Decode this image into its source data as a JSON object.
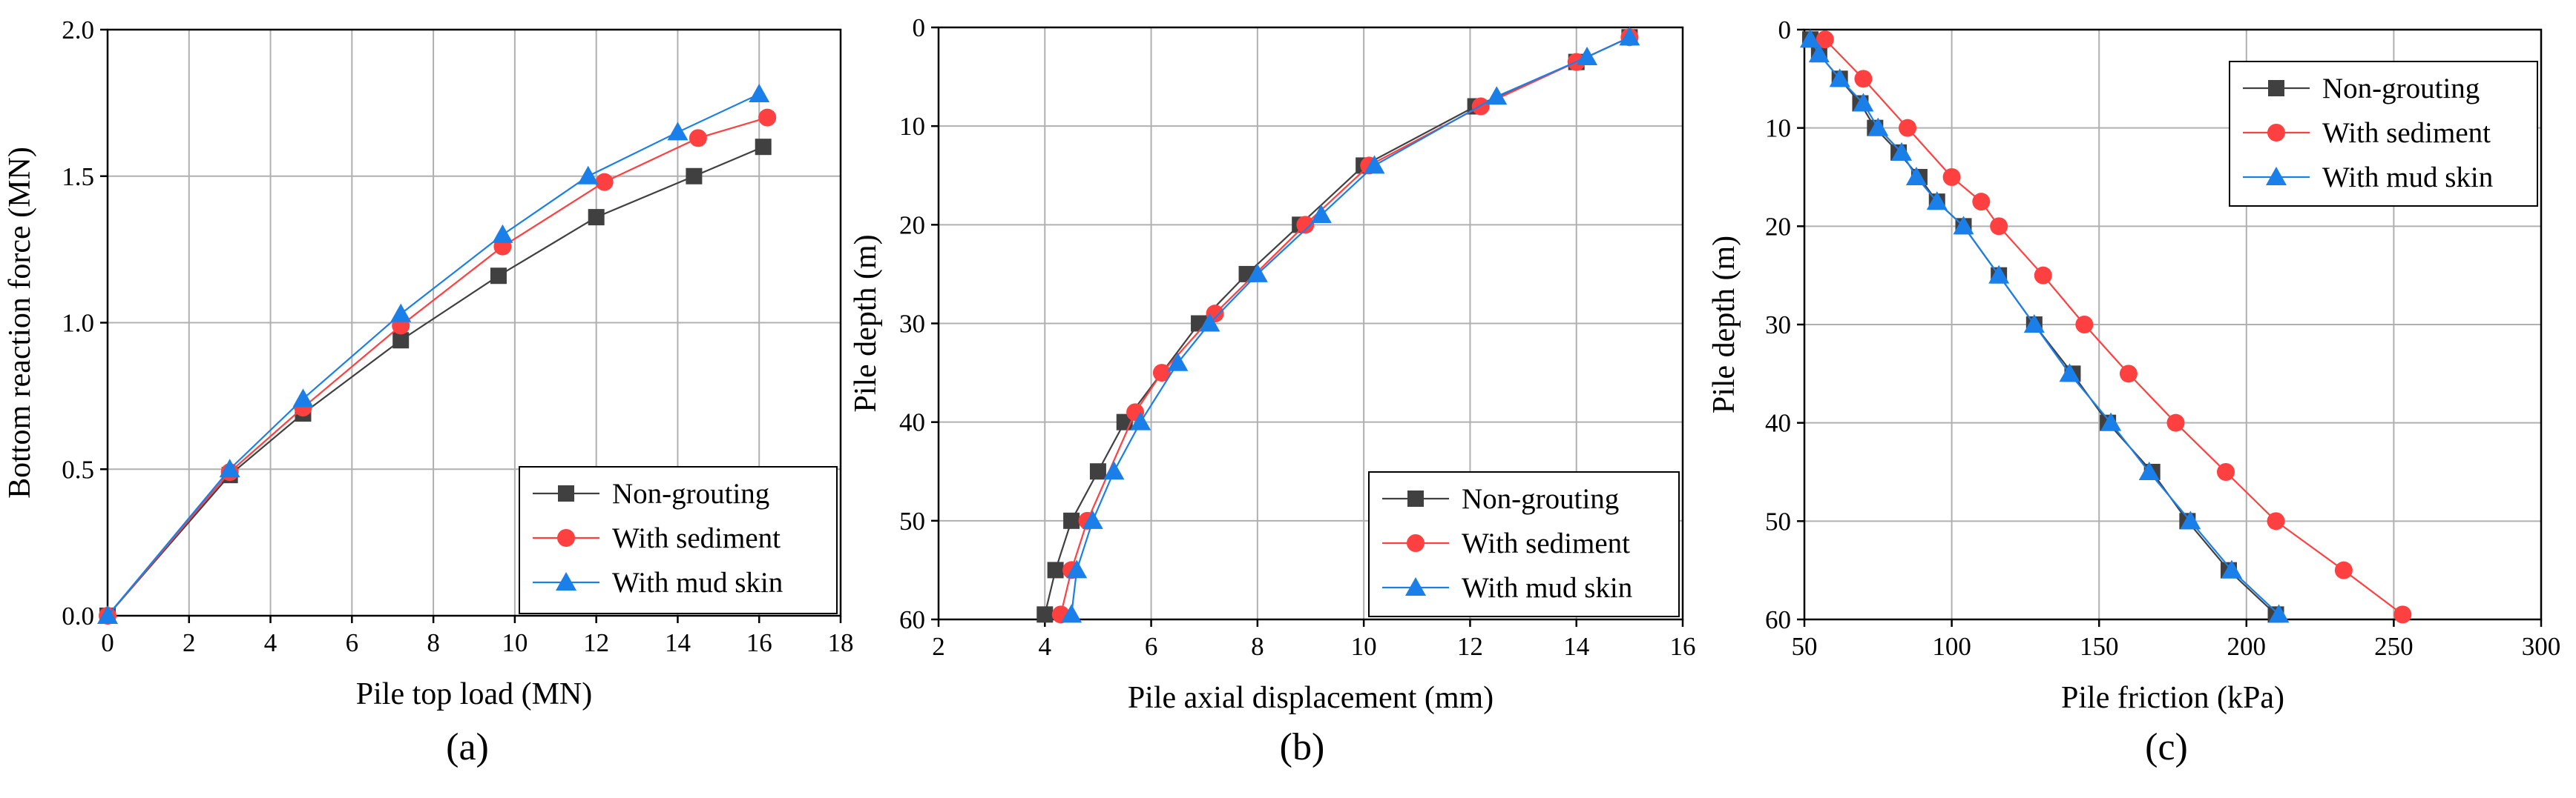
{
  "chart_data": [
    {
      "type": "line",
      "panel_label": "(a)",
      "xlabel": "Pile top load (MN)",
      "ylabel": "Bottom reaction force (MN)",
      "xlim": [
        0,
        18
      ],
      "ylim": [
        0,
        2.0
      ],
      "xticks": [
        "0",
        "2",
        "4",
        "6",
        "8",
        "10",
        "12",
        "14",
        "16",
        "18"
      ],
      "yticks": [
        "0.0",
        "0.5",
        "1.0",
        "1.5",
        "2.0"
      ],
      "x_inverted": false,
      "y_inverted": false,
      "grid": true,
      "legend_position": "bottom-right",
      "series": [
        {
          "name": "Non-grouting",
          "color": "#404040",
          "marker": "square",
          "x": [
            0,
            3,
            4.8,
            7.2,
            9.6,
            12.0,
            14.4,
            16.1
          ],
          "y": [
            0,
            0.48,
            0.69,
            0.94,
            1.16,
            1.36,
            1.5,
            1.6
          ]
        },
        {
          "name": "With sediment",
          "color": "#ff4040",
          "marker": "circle",
          "x": [
            0,
            3,
            4.8,
            7.2,
            9.7,
            12.2,
            14.5,
            16.2
          ],
          "y": [
            0,
            0.49,
            0.71,
            0.99,
            1.26,
            1.48,
            1.63,
            1.7
          ]
        },
        {
          "name": "With mud skin",
          "color": "#1a7fe8",
          "marker": "triangle",
          "x": [
            0,
            3,
            4.8,
            7.2,
            9.7,
            11.8,
            14.0,
            16.0
          ],
          "y": [
            0,
            0.5,
            0.74,
            1.03,
            1.3,
            1.5,
            1.65,
            1.78
          ]
        }
      ]
    },
    {
      "type": "line",
      "panel_label": "(b)",
      "xlabel": "Pile axial displacement (mm)",
      "ylabel": "Pile depth (m)",
      "xlim": [
        2,
        16
      ],
      "ylim": [
        0,
        60
      ],
      "xticks": [
        "2",
        "4",
        "6",
        "8",
        "10",
        "12",
        "14",
        "16"
      ],
      "yticks": [
        "0",
        "10",
        "20",
        "30",
        "40",
        "50",
        "60"
      ],
      "x_inverted": false,
      "y_inverted": true,
      "grid": true,
      "legend_position": "bottom-right",
      "series": [
        {
          "name": "Non-grouting",
          "color": "#404040",
          "marker": "square",
          "x": [
            15.0,
            14.0,
            12.1,
            10.0,
            8.8,
            7.8,
            6.9,
            5.5,
            5.0,
            4.5,
            4.2,
            4.0
          ],
          "y": [
            1,
            3.5,
            8,
            14,
            20,
            25,
            30,
            40,
            45,
            50,
            55,
            59.5
          ]
        },
        {
          "name": "With sediment",
          "color": "#ff4040",
          "marker": "circle",
          "x": [
            15.0,
            14.0,
            12.2,
            10.1,
            8.9,
            7.2,
            6.2,
            5.7,
            4.8,
            4.5,
            4.3
          ],
          "y": [
            1,
            3.5,
            8,
            14,
            20,
            29,
            35,
            39,
            50,
            55,
            59.5
          ]
        },
        {
          "name": "With mud skin",
          "color": "#1a7fe8",
          "marker": "triangle",
          "x": [
            15.0,
            14.2,
            12.5,
            10.2,
            9.2,
            8.0,
            7.1,
            6.5,
            5.8,
            5.3,
            4.9,
            4.6,
            4.5
          ],
          "y": [
            1,
            3,
            7,
            14,
            19,
            25,
            30,
            34,
            40,
            45,
            50,
            55,
            59.5
          ]
        }
      ]
    },
    {
      "type": "line",
      "panel_label": "(c)",
      "xlabel": "Pile friction (kPa)",
      "ylabel": "Pile depth (m)",
      "xlim": [
        50,
        300
      ],
      "ylim": [
        0,
        60
      ],
      "xticks": [
        "50",
        "100",
        "150",
        "200",
        "250",
        "300"
      ],
      "yticks": [
        "0",
        "10",
        "20",
        "30",
        "40",
        "50",
        "60"
      ],
      "x_inverted": false,
      "y_inverted": true,
      "grid": true,
      "legend_position": "top-right",
      "series": [
        {
          "name": "Non-grouting",
          "color": "#404040",
          "marker": "square",
          "x": [
            52,
            55,
            62,
            69,
            74,
            82,
            89,
            95,
            104,
            116,
            128,
            141,
            153,
            168,
            180,
            194,
            210
          ],
          "y": [
            1,
            2.5,
            5,
            7.5,
            10,
            12.5,
            15,
            17.5,
            20,
            25,
            30,
            35,
            40,
            45,
            50,
            55,
            59.5
          ]
        },
        {
          "name": "With sediment",
          "color": "#ff4040",
          "marker": "circle",
          "x": [
            57,
            70,
            85,
            100,
            110,
            116,
            131,
            145,
            160,
            176,
            193,
            210,
            233,
            253
          ],
          "y": [
            1,
            5,
            10,
            15,
            17.5,
            20,
            25,
            30,
            35,
            40,
            45,
            50,
            55,
            59.5
          ]
        },
        {
          "name": "With mud skin",
          "color": "#1a7fe8",
          "marker": "triangle",
          "x": [
            52,
            55,
            62,
            70,
            75,
            83,
            88,
            95,
            104,
            116,
            128,
            140,
            154,
            167,
            181,
            195,
            211
          ],
          "y": [
            1,
            2.5,
            5,
            7.5,
            10,
            12.5,
            15,
            17.5,
            20,
            25,
            30,
            35,
            40,
            45,
            50,
            55,
            59.5
          ]
        }
      ]
    }
  ]
}
